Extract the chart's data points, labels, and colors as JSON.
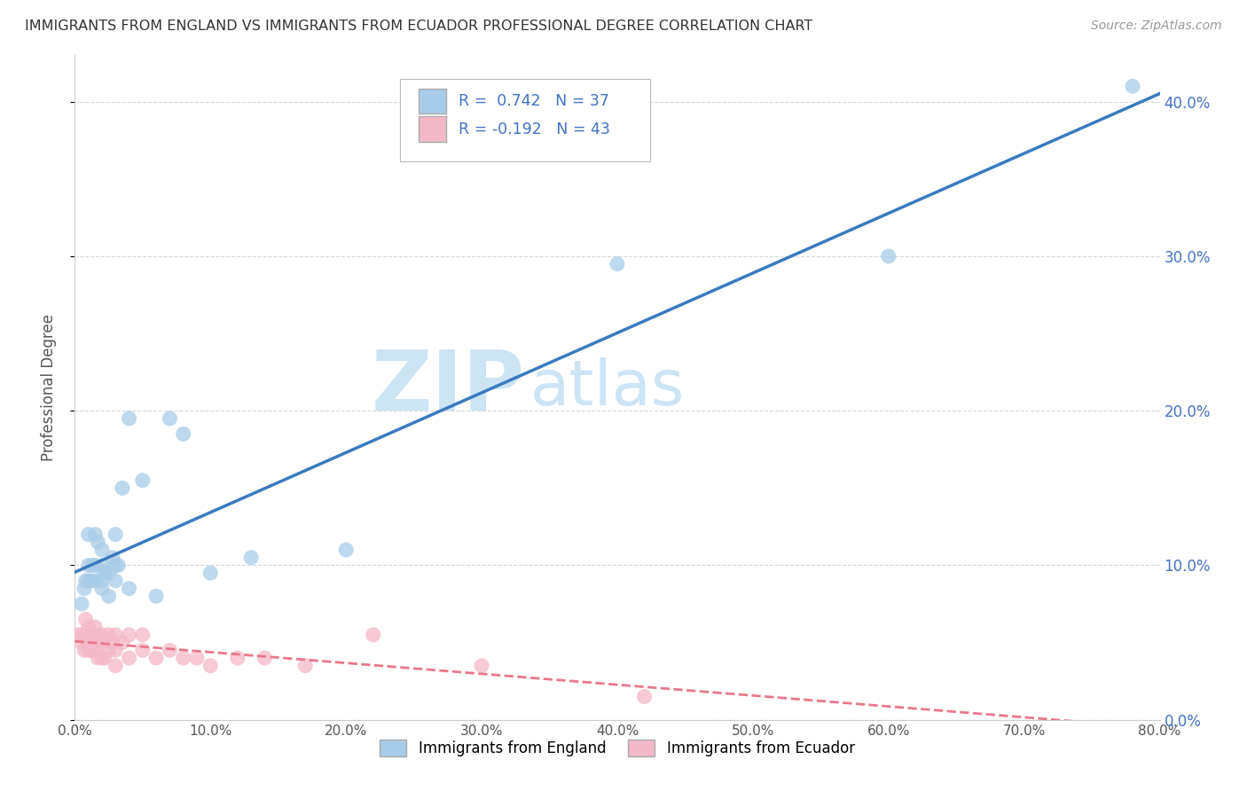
{
  "title": "IMMIGRANTS FROM ENGLAND VS IMMIGRANTS FROM ECUADOR PROFESSIONAL DEGREE CORRELATION CHART",
  "source": "Source: ZipAtlas.com",
  "ylabel": "Professional Degree",
  "xlim": [
    0.0,
    0.8
  ],
  "ylim": [
    0.0,
    0.43
  ],
  "england_R": 0.742,
  "england_N": 37,
  "ecuador_R": -0.192,
  "ecuador_N": 43,
  "england_color": "#a8cce8",
  "ecuador_color": "#f4b8c8",
  "england_line_color": "#3a7abf",
  "ecuador_line_color": "#e8788a",
  "watermark_zip": "ZIP",
  "watermark_atlas": "atlas",
  "watermark_color": "#cce4f4",
  "grid_color": "#cccccc",
  "title_color": "#333333",
  "stat_color": "#4472c4",
  "tick_color": "#4472c4",
  "england_x": [
    0.005,
    0.007,
    0.008,
    0.01,
    0.01,
    0.01,
    0.012,
    0.013,
    0.015,
    0.015,
    0.015,
    0.017,
    0.02,
    0.02,
    0.02,
    0.02,
    0.022,
    0.025,
    0.025,
    0.028,
    0.03,
    0.03,
    0.03,
    0.032,
    0.035,
    0.04,
    0.04,
    0.05,
    0.06,
    0.07,
    0.08,
    0.1,
    0.13,
    0.2,
    0.4,
    0.6,
    0.78
  ],
  "england_y": [
    0.075,
    0.085,
    0.09,
    0.09,
    0.1,
    0.12,
    0.09,
    0.1,
    0.09,
    0.1,
    0.12,
    0.115,
    0.085,
    0.09,
    0.1,
    0.11,
    0.095,
    0.08,
    0.095,
    0.105,
    0.09,
    0.1,
    0.12,
    0.1,
    0.15,
    0.085,
    0.195,
    0.155,
    0.08,
    0.195,
    0.185,
    0.095,
    0.105,
    0.11,
    0.295,
    0.3,
    0.41
  ],
  "ecuador_x": [
    0.003,
    0.005,
    0.006,
    0.007,
    0.008,
    0.008,
    0.01,
    0.01,
    0.01,
    0.012,
    0.012,
    0.013,
    0.015,
    0.015,
    0.015,
    0.017,
    0.018,
    0.02,
    0.02,
    0.02,
    0.022,
    0.025,
    0.025,
    0.028,
    0.03,
    0.03,
    0.03,
    0.035,
    0.04,
    0.04,
    0.05,
    0.05,
    0.06,
    0.07,
    0.08,
    0.09,
    0.1,
    0.12,
    0.14,
    0.17,
    0.22,
    0.3,
    0.42
  ],
  "ecuador_y": [
    0.055,
    0.05,
    0.055,
    0.045,
    0.055,
    0.065,
    0.045,
    0.05,
    0.06,
    0.045,
    0.055,
    0.05,
    0.045,
    0.05,
    0.06,
    0.04,
    0.055,
    0.04,
    0.05,
    0.055,
    0.04,
    0.045,
    0.055,
    0.05,
    0.035,
    0.045,
    0.055,
    0.05,
    0.04,
    0.055,
    0.045,
    0.055,
    0.04,
    0.045,
    0.04,
    0.04,
    0.035,
    0.04,
    0.04,
    0.035,
    0.055,
    0.035,
    0.015
  ]
}
